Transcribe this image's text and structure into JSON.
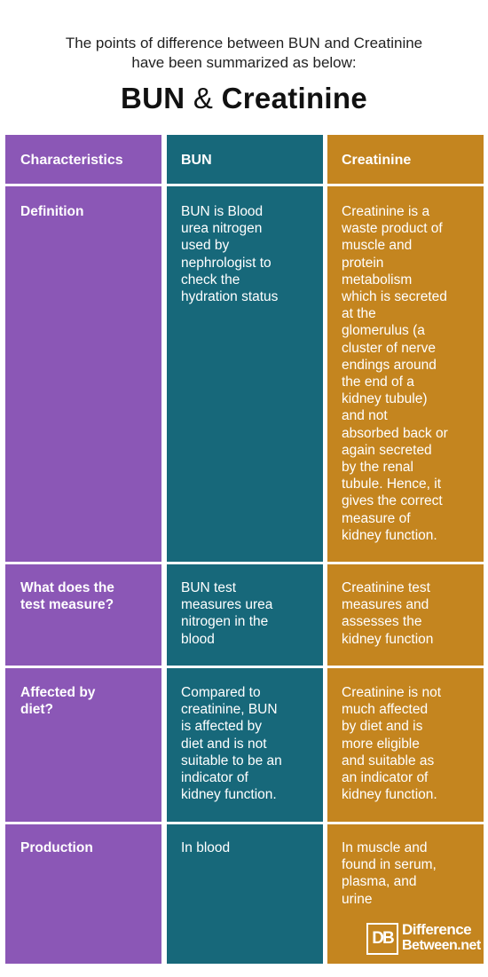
{
  "intro": {
    "line1": "The points of difference between BUN and Creatinine",
    "line2": "have been summarized as below:"
  },
  "title": {
    "left": "BUN",
    "amp": "&",
    "right": "Creatinine"
  },
  "colors": {
    "characteristics": "#8b57b6",
    "bun": "#17687a",
    "creatinine": "#c4851f"
  },
  "table": {
    "headers": [
      "Characteristics",
      "BUN",
      "Creatinine"
    ],
    "rows": [
      {
        "label": [
          "Definition"
        ],
        "bun": [
          "BUN is Blood",
          "urea nitrogen",
          "used by",
          "nephrologist to",
          "check the",
          "hydration status"
        ],
        "creatinine": [
          "Creatinine is a",
          "waste product of",
          "muscle and",
          "protein",
          "metabolism",
          "which is secreted",
          "at the",
          "glomerulus (a",
          "cluster of nerve",
          "endings around",
          "the end of a",
          "kidney tubule)",
          "and not",
          "absorbed back or",
          "again secreted",
          "by the renal",
          "tubule.  Hence, it",
          "gives the correct",
          "measure of",
          "kidney function."
        ]
      },
      {
        "label": [
          "What does the",
          "test measure?"
        ],
        "bun": [
          "BUN test",
          "measures urea",
          "nitrogen in the",
          "blood"
        ],
        "creatinine": [
          "Creatinine test",
          "measures and",
          "assesses the",
          "kidney function"
        ]
      },
      {
        "label": [
          "Affected by",
          "diet?"
        ],
        "bun": [
          "Compared to",
          "creatinine, BUN",
          "is affected by",
          "diet and is not",
          "suitable to be an",
          "indicator of",
          "kidney function."
        ],
        "creatinine": [
          "Creatinine is not",
          "much affected",
          "by diet and is",
          "more eligible",
          "and suitable as",
          "an indicator of",
          "kidney function."
        ]
      },
      {
        "label": [
          "Production"
        ],
        "bun": [
          "In blood"
        ],
        "creatinine": [
          "In muscle and",
          "found in serum,",
          "plasma, and",
          "urine"
        ]
      }
    ]
  },
  "logo": {
    "mark": "DB",
    "line1": "Difference",
    "line2": "Between.net"
  }
}
